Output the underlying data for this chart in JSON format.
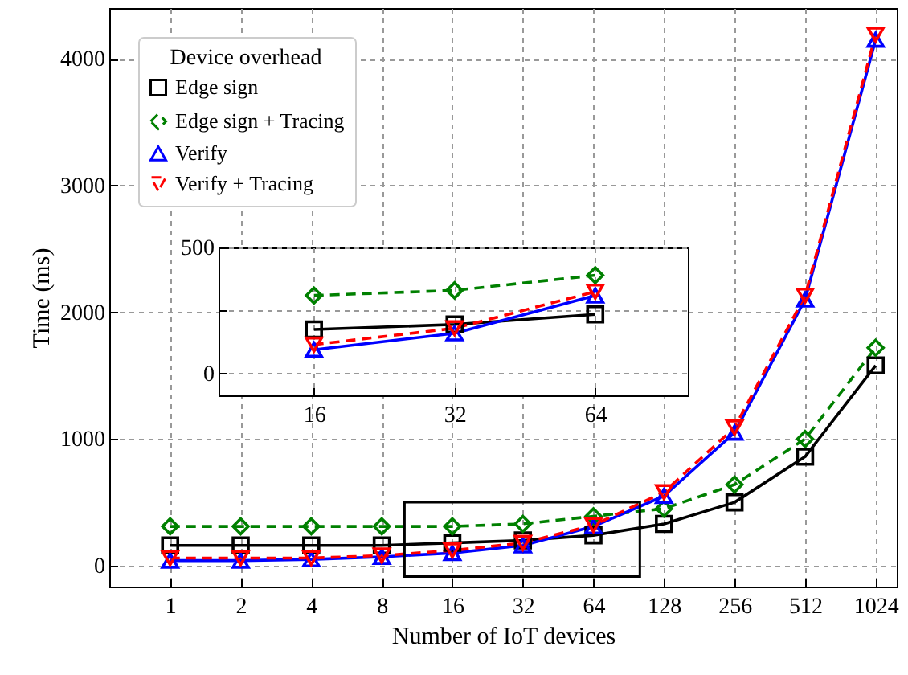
{
  "chart_data": [
    {
      "type": "line",
      "xlabel": "Number of IoT devices",
      "ylabel": "Time (ms)",
      "legend_title": "Device overhead",
      "legend": "top left",
      "grid": true,
      "log": "x",
      "x": [
        1,
        2,
        4,
        8,
        16,
        32,
        64,
        128,
        256,
        512,
        1024
      ],
      "xlim": [
        0.55,
        1260
      ],
      "xticks": [
        1,
        2,
        4,
        8,
        16,
        32,
        64,
        128,
        256,
        512,
        1024
      ],
      "ylim": [
        -165,
        4400
      ],
      "yticks": [
        0,
        1000,
        2000,
        3000,
        4000
      ],
      "series": [
        {
          "name": "Edge sign",
          "color": "#000000",
          "marker": "square",
          "line_style": "solid",
          "values": [
            160,
            160,
            160,
            160,
            180,
            200,
            240,
            330,
            500,
            860,
            1580
          ]
        },
        {
          "name": "Edge sign + Tracing",
          "color": "#008000",
          "marker": "diamond",
          "line_style": "dashed",
          "values": [
            310,
            310,
            310,
            310,
            310,
            330,
            390,
            450,
            640,
            1000,
            1720
          ]
        },
        {
          "name": "Verify",
          "color": "#0000ff",
          "marker": "triangle",
          "line_style": "solid",
          "values": [
            40,
            40,
            50,
            70,
            100,
            160,
            310,
            550,
            1050,
            2100,
            4150
          ]
        },
        {
          "name": "Verify + Tracing",
          "color": "#ff0000",
          "marker": "triangle-down",
          "line_style": "dashed",
          "values": [
            60,
            60,
            60,
            80,
            120,
            180,
            320,
            580,
            1090,
            2130,
            4190
          ]
        }
      ]
    },
    {
      "type": "line",
      "grid": true,
      "log": "x",
      "legend": false,
      "x": [
        16,
        32,
        64
      ],
      "xlim": [
        10,
        101
      ],
      "xticks": [
        16,
        32,
        64
      ],
      "ylim": [
        -86,
        500
      ],
      "yticks": [
        0,
        {
          "value": 250,
          "label": null
        },
        500
      ],
      "series": [
        {
          "color": "#000000",
          "marker": "square",
          "line_style": "solid",
          "values": [
            175,
            195,
            235
          ]
        },
        {
          "color": "#008000",
          "marker": "diamond",
          "line_style": "dashed",
          "values": [
            310,
            330,
            390
          ]
        },
        {
          "color": "#0000ff",
          "marker": "triangle",
          "line_style": "solid",
          "values": [
            95,
            160,
            310
          ]
        },
        {
          "color": "#ff0000",
          "marker": "triangle-down",
          "line_style": "dashed",
          "values": [
            115,
            180,
            325
          ]
        }
      ]
    }
  ]
}
